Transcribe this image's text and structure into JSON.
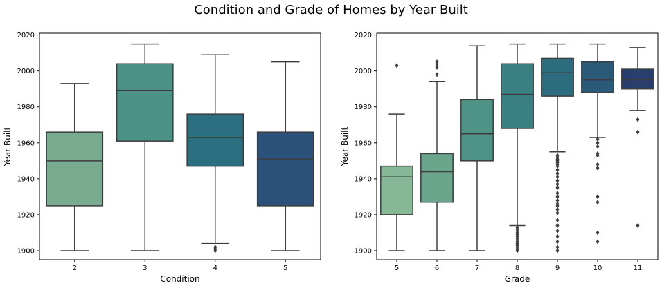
{
  "figure_title": "Condition and Grade of Homes by Year Built",
  "chart_data": [
    {
      "type": "box",
      "xlabel": "Condition",
      "ylabel": "Year Built",
      "ylim": [
        1895,
        2021
      ],
      "yticks": [
        1900,
        1920,
        1940,
        1960,
        1980,
        2000,
        2020
      ],
      "categories": [
        "2",
        "3",
        "4",
        "5"
      ],
      "colors": [
        "#78ab8f",
        "#4c9185",
        "#2b6f80",
        "#2b5079"
      ],
      "boxes": [
        {
          "category": "2",
          "whisker_low": 1900,
          "q1": 1925,
          "median": 1950,
          "q3": 1966,
          "whisker_high": 1993,
          "outliers": []
        },
        {
          "category": "3",
          "whisker_low": 1900,
          "q1": 1961,
          "median": 1989,
          "q3": 2004,
          "whisker_high": 2015,
          "outliers": []
        },
        {
          "category": "4",
          "whisker_low": 1904,
          "q1": 1947,
          "median": 1963,
          "q3": 1976,
          "whisker_high": 2009,
          "outliers": [
            1900,
            1901,
            1902
          ]
        },
        {
          "category": "5",
          "whisker_low": 1900,
          "q1": 1925,
          "median": 1951,
          "q3": 1966,
          "whisker_high": 2005,
          "outliers": []
        }
      ]
    },
    {
      "type": "box",
      "xlabel": "Grade",
      "ylabel": "Year Built",
      "ylim": [
        1895,
        2021
      ],
      "yticks": [
        1900,
        1920,
        1940,
        1960,
        1980,
        2000,
        2020
      ],
      "categories": [
        "5",
        "6",
        "7",
        "8",
        "9",
        "10",
        "11"
      ],
      "colors": [
        "#87b895",
        "#68a58b",
        "#4f9386",
        "#3a7f82",
        "#2d6c7d",
        "#2a5a78",
        "#283e6d"
      ],
      "boxes": [
        {
          "category": "5",
          "whisker_low": 1900,
          "q1": 1920,
          "median": 1941,
          "q3": 1947,
          "whisker_high": 1976,
          "outliers": [
            2003
          ]
        },
        {
          "category": "6",
          "whisker_low": 1900,
          "q1": 1927,
          "median": 1944,
          "q3": 1954,
          "whisker_high": 1994,
          "outliers": [
            1998,
            2002,
            2003,
            2004,
            2005
          ]
        },
        {
          "category": "7",
          "whisker_low": 1900,
          "q1": 1950,
          "median": 1965,
          "q3": 1984,
          "whisker_high": 2014,
          "outliers": []
        },
        {
          "category": "8",
          "whisker_low": 1914,
          "q1": 1968,
          "median": 1987,
          "q3": 2004,
          "whisker_high": 2015,
          "outliers": [
            1900,
            1901,
            1902,
            1903,
            1904,
            1905,
            1906,
            1907,
            1908,
            1909,
            1910,
            1911,
            1912,
            1913
          ]
        },
        {
          "category": "9",
          "whisker_low": 1955,
          "q1": 1986,
          "median": 1999,
          "q3": 2007,
          "whisker_high": 2015,
          "outliers": [
            1900,
            1902,
            1905,
            1908,
            1911,
            1914,
            1917,
            1921,
            1923,
            1925,
            1926,
            1928,
            1930,
            1932,
            1935,
            1937,
            1939,
            1941,
            1943,
            1945,
            1947,
            1948,
            1949,
            1950,
            1951,
            1952,
            1953
          ]
        },
        {
          "category": "10",
          "whisker_low": 1963,
          "q1": 1988,
          "median": 1995,
          "q3": 2005,
          "whisker_high": 2015,
          "outliers": [
            1905,
            1910,
            1927,
            1930,
            1946,
            1948,
            1953,
            1954,
            1958,
            1960,
            1962
          ]
        },
        {
          "category": "11",
          "whisker_low": 1978,
          "q1": 1990,
          "median": 1995,
          "q3": 2001,
          "whisker_high": 2013,
          "outliers": [
            1914,
            1966,
            1973
          ]
        }
      ]
    }
  ]
}
